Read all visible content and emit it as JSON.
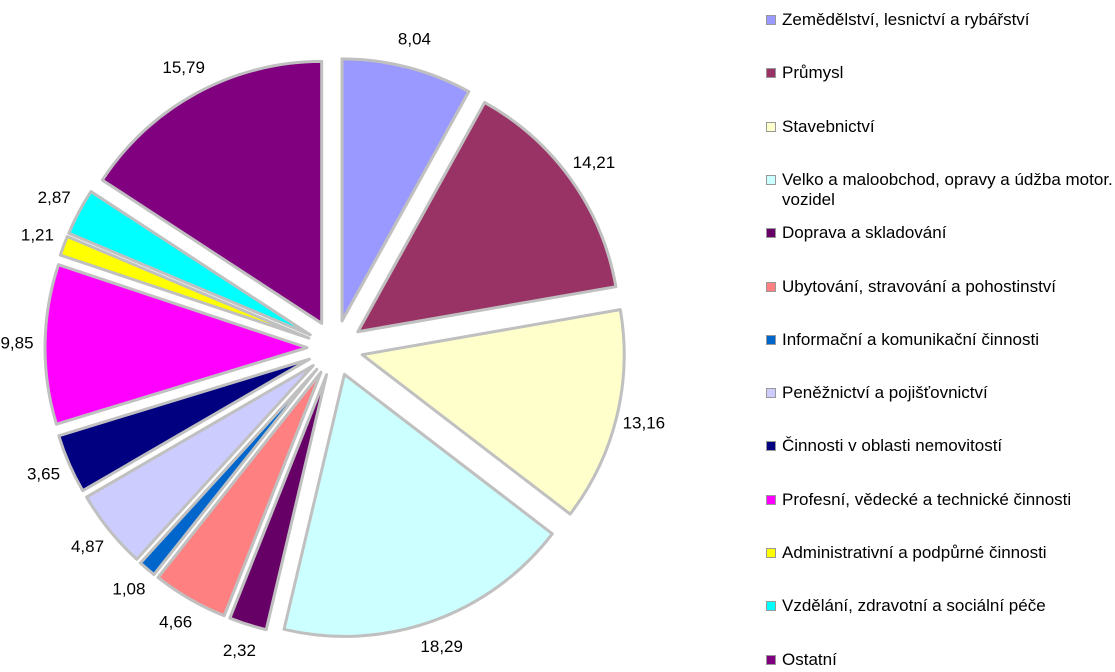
{
  "chart_data": {
    "type": "pie",
    "categories": [
      "Zemědělství, lesnictví a rybářství",
      "Průmysl",
      "Stavebnictví",
      "Velko a maloobchod, opravy a údžba motor. vozidel",
      "Doprava a skladování",
      "Ubytování, stravování a pohostinství",
      " Informační a komunikační činnosti",
      "Peněžnictví a pojišťovnictví",
      "Činnosti v oblasti nemovitostí",
      " Profesní, vědecké a technické činnosti",
      " Administrativní a podpůrné činnosti",
      "Vzdělání, zdravotní a sociální péče",
      "Ostatní"
    ],
    "values": [
      8.04,
      14.21,
      13.16,
      18.29,
      2.32,
      4.66,
      1.08,
      4.87,
      3.65,
      9.85,
      1.21,
      2.87,
      15.79
    ],
    "value_labels": [
      "8,04",
      "14,21",
      "13,16",
      "18,29",
      "2,32",
      "4,66",
      "1,08",
      "4,87",
      "3,65",
      "9,85",
      "1,21",
      "2,87",
      "15,79"
    ],
    "colors": [
      "#9999ff",
      "#993366",
      "#ffffcc",
      "#ccffff",
      "#660066",
      "#ff8080",
      "#0066cc",
      "#ccccff",
      "#000080",
      "#ff00ff",
      "#ffff00",
      "#00ffff",
      "#800080"
    ]
  }
}
